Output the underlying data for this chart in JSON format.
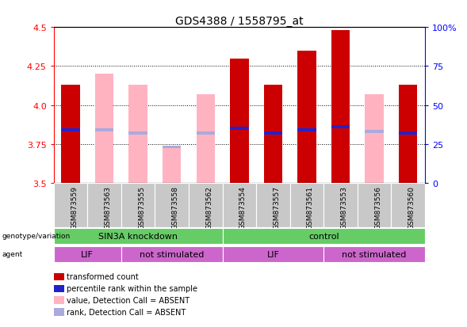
{
  "title": "GDS4388 / 1558795_at",
  "samples": [
    "GSM873559",
    "GSM873563",
    "GSM873555",
    "GSM873558",
    "GSM873562",
    "GSM873554",
    "GSM873557",
    "GSM873561",
    "GSM873553",
    "GSM873556",
    "GSM873560"
  ],
  "y_min": 3.5,
  "y_max": 4.5,
  "y_ticks": [
    3.5,
    3.75,
    4.0,
    4.25,
    4.5
  ],
  "y_right_ticks": [
    0,
    25,
    50,
    75,
    100
  ],
  "y_right_labels": [
    "0",
    "25",
    "50",
    "75",
    "100%"
  ],
  "bars": [
    {
      "sample": "GSM873559",
      "value": 4.13,
      "rank_value": 3.84,
      "absent": false
    },
    {
      "sample": "GSM873563",
      "value": 4.2,
      "rank_value": 3.84,
      "absent": true
    },
    {
      "sample": "GSM873555",
      "value": 4.13,
      "rank_value": 3.82,
      "absent": true
    },
    {
      "sample": "GSM873558",
      "value": 3.74,
      "rank_value": 3.73,
      "absent": true
    },
    {
      "sample": "GSM873562",
      "value": 4.07,
      "rank_value": 3.82,
      "absent": true
    },
    {
      "sample": "GSM873554",
      "value": 4.3,
      "rank_value": 3.85,
      "absent": false
    },
    {
      "sample": "GSM873557",
      "value": 4.13,
      "rank_value": 3.82,
      "absent": false
    },
    {
      "sample": "GSM873561",
      "value": 4.35,
      "rank_value": 3.84,
      "absent": false
    },
    {
      "sample": "GSM873553",
      "value": 4.48,
      "rank_value": 3.86,
      "absent": false
    },
    {
      "sample": "GSM873556",
      "value": 4.07,
      "rank_value": 3.83,
      "absent": true
    },
    {
      "sample": "GSM873560",
      "value": 4.13,
      "rank_value": 3.82,
      "absent": false
    }
  ],
  "genotype_groups": [
    {
      "label": "SIN3A knockdown",
      "start": 0,
      "end": 5
    },
    {
      "label": "control",
      "start": 5,
      "end": 11
    }
  ],
  "agent_groups": [
    {
      "label": "LIF",
      "start": 0,
      "end": 2
    },
    {
      "label": "not stimulated",
      "start": 2,
      "end": 5
    },
    {
      "label": "LIF",
      "start": 5,
      "end": 8
    },
    {
      "label": "not stimulated",
      "start": 8,
      "end": 11
    }
  ],
  "bar_width": 0.55,
  "red_color": "#cc0000",
  "pink_color": "#ffb3c1",
  "blue_color": "#2222cc",
  "light_blue_color": "#aaaadd",
  "gray_color": "#c8c8c8",
  "green_color": "#66cc66",
  "magenta_color": "#cc66cc",
  "legend_items": [
    {
      "color": "#cc0000",
      "label": "transformed count"
    },
    {
      "color": "#2222cc",
      "label": "percentile rank within the sample"
    },
    {
      "color": "#ffb3c1",
      "label": "value, Detection Call = ABSENT"
    },
    {
      "color": "#aaaadd",
      "label": "rank, Detection Call = ABSENT"
    }
  ]
}
